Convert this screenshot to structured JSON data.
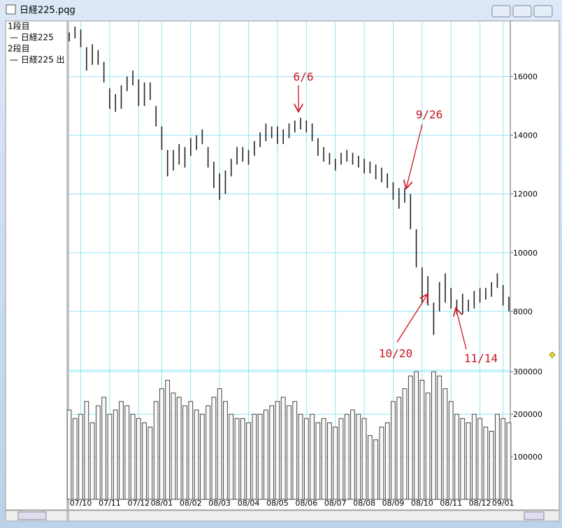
{
  "window": {
    "title": "日経225.pqg",
    "legend": [
      "1段目",
      "— 日経225",
      "2段目",
      "— 日経225 出"
    ]
  },
  "chart_data": [
    {
      "type": "hilo",
      "color": "#222222",
      "grid": true,
      "xlim": [
        0,
        76
      ],
      "ylim": [
        6000,
        17750
      ],
      "yticks": [
        8000,
        10000,
        12000,
        14000,
        16000
      ],
      "annotations": [
        "6/6",
        "9/26",
        "10/20",
        "11/14"
      ],
      "high": [
        17500,
        17700,
        17600,
        17000,
        17100,
        16900,
        16500,
        15600,
        15400,
        15700,
        16000,
        16200,
        15900,
        15800,
        15800,
        15000,
        14300,
        13500,
        13500,
        13700,
        13600,
        13900,
        14000,
        14200,
        13600,
        13100,
        12700,
        12800,
        13200,
        13600,
        13600,
        13500,
        13800,
        14100,
        14400,
        14300,
        14300,
        14200,
        14400,
        14500,
        14600,
        14500,
        14400,
        13900,
        13600,
        13400,
        13200,
        13400,
        13500,
        13400,
        13300,
        13200,
        13100,
        13000,
        12900,
        12700,
        12400,
        12200,
        12200,
        12000,
        10800,
        9500,
        9200,
        8300,
        9000,
        9300,
        8800,
        8400,
        8600,
        8400,
        8700,
        8800,
        8800,
        9000,
        9300,
        8900,
        8500
      ],
      "low": [
        17200,
        17300,
        17000,
        16200,
        16400,
        16400,
        15800,
        14900,
        14800,
        14900,
        15500,
        15700,
        15000,
        15000,
        15200,
        14300,
        13500,
        12600,
        12800,
        13000,
        12900,
        13300,
        13500,
        13700,
        12900,
        12200,
        11800,
        12000,
        12600,
        13000,
        13100,
        13000,
        13300,
        13600,
        13800,
        13900,
        13700,
        13700,
        13900,
        14100,
        14200,
        14100,
        13800,
        13300,
        13100,
        13000,
        12800,
        13000,
        13100,
        13000,
        12900,
        12700,
        12700,
        12500,
        12400,
        12200,
        11800,
        11500,
        11700,
        10800,
        9500,
        8300,
        8200,
        7200,
        8000,
        8300,
        8100,
        7900,
        7900,
        8000,
        8100,
        8300,
        8400,
        8500,
        8800,
        8200,
        8000
      ]
    },
    {
      "type": "bar",
      "color": "#444444",
      "grid": true,
      "xlim": [
        0,
        76
      ],
      "ylim": [
        0,
        302000
      ],
      "yticks": [
        100000,
        200000,
        300000
      ],
      "xticks": [
        {
          "value": 2,
          "label": "07/10"
        },
        {
          "value": 7,
          "label": "07/11"
        },
        {
          "value": 12,
          "label": "07/12"
        },
        {
          "value": 16,
          "label": "08/01"
        },
        {
          "value": 21,
          "label": "08/02"
        },
        {
          "value": 26,
          "label": "08/03"
        },
        {
          "value": 31,
          "label": "08/04"
        },
        {
          "value": 36,
          "label": "08/05"
        },
        {
          "value": 41,
          "label": "08/06"
        },
        {
          "value": 46,
          "label": "08/07"
        },
        {
          "value": 51,
          "label": "08/08"
        },
        {
          "value": 56,
          "label": "08/09"
        },
        {
          "value": 61,
          "label": "08/10"
        },
        {
          "value": 66,
          "label": "08/11"
        },
        {
          "value": 71,
          "label": "08/12"
        },
        {
          "value": 75,
          "label": "09/01"
        }
      ],
      "values": [
        210000,
        190000,
        200000,
        230000,
        180000,
        220000,
        240000,
        200000,
        210000,
        230000,
        220000,
        200000,
        190000,
        180000,
        170000,
        230000,
        260000,
        280000,
        250000,
        240000,
        220000,
        230000,
        210000,
        200000,
        220000,
        240000,
        260000,
        230000,
        200000,
        190000,
        190000,
        180000,
        200000,
        200000,
        210000,
        220000,
        230000,
        240000,
        220000,
        230000,
        200000,
        190000,
        200000,
        180000,
        190000,
        180000,
        170000,
        190000,
        200000,
        210000,
        200000,
        190000,
        150000,
        140000,
        170000,
        180000,
        230000,
        240000,
        260000,
        290000,
        300000,
        280000,
        250000,
        300000,
        290000,
        260000,
        230000,
        200000,
        190000,
        180000,
        200000,
        190000,
        170000,
        160000,
        200000,
        190000,
        180000
      ]
    }
  ]
}
